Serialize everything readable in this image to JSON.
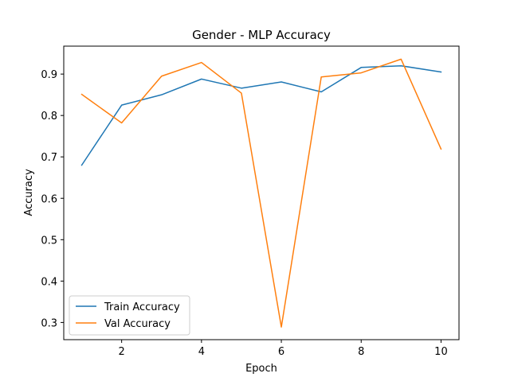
{
  "chart_data": {
    "type": "line",
    "title": "Gender - MLP Accuracy",
    "xlabel": "Epoch",
    "ylabel": "Accuracy",
    "x": [
      1,
      2,
      3,
      4,
      5,
      6,
      7,
      8,
      9,
      10
    ],
    "xlim": [
      0.55,
      10.45
    ],
    "ylim": [
      0.2585,
      0.9675
    ],
    "xticks": [
      2,
      4,
      6,
      8,
      10
    ],
    "yticks": [
      0.3,
      0.4,
      0.5,
      0.6,
      0.7,
      0.8,
      0.9
    ],
    "xtick_labels": [
      "2",
      "4",
      "6",
      "8",
      "10"
    ],
    "ytick_labels": [
      "0.3",
      "0.4",
      "0.5",
      "0.6",
      "0.7",
      "0.8",
      "0.9"
    ],
    "grid": false,
    "legend_position": "lower-left",
    "series": [
      {
        "name": "Train Accuracy",
        "color": "#1f77b4",
        "values": [
          0.68,
          0.825,
          0.85,
          0.888,
          0.866,
          0.881,
          0.857,
          0.916,
          0.92,
          0.905
        ]
      },
      {
        "name": "Val Accuracy",
        "color": "#ff7f0e",
        "values": [
          0.851,
          0.782,
          0.895,
          0.928,
          0.854,
          0.289,
          0.893,
          0.903,
          0.936,
          0.719
        ]
      }
    ]
  }
}
